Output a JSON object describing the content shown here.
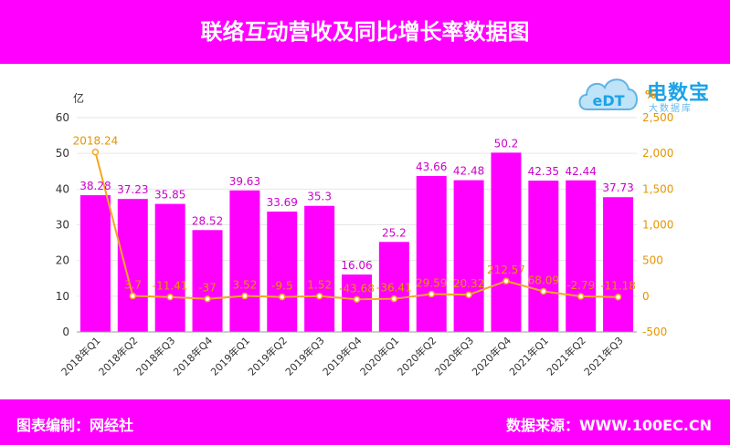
{
  "header": {
    "title": "联络互动营收及同比增长率数据图"
  },
  "footer": {
    "left": "图表编制：网经社",
    "right": "数据来源：WWW.100EC.CN"
  },
  "logo": {
    "name": "电数宝",
    "sub": "大数据库",
    "badge": "eDT"
  },
  "colors": {
    "bar": "#ff00ff",
    "line": "#f5a623",
    "bar_label": "#cc00cc",
    "line_label": "#e69500"
  },
  "chart_data": {
    "type": "bar",
    "categories": [
      "2018年Q1",
      "2018年Q2",
      "2018年Q3",
      "2018年Q4",
      "2019年Q1",
      "2019年Q2",
      "2019年Q3",
      "2019年Q4",
      "2020年Q1",
      "2020年Q2",
      "2020年Q3",
      "2020年Q4",
      "2021年Q1",
      "2021年Q2",
      "2021年Q3"
    ],
    "series": [
      {
        "type": "bar",
        "axis": "left",
        "values": [
          38.28,
          37.23,
          35.85,
          28.52,
          39.63,
          33.69,
          35.3,
          16.06,
          25.2,
          43.66,
          42.48,
          50.2,
          42.35,
          42.44,
          37.73
        ]
      },
      {
        "type": "line",
        "axis": "right",
        "values": [
          2018.24,
          3.7,
          -11.41,
          -37,
          3.52,
          -9.5,
          1.52,
          -43.68,
          -36.41,
          29.59,
          20.32,
          212.57,
          68.09,
          -2.79,
          -11.18
        ]
      }
    ],
    "ylabel": "亿",
    "y2label": "%",
    "ylim": [
      0,
      60
    ],
    "y_ticks": [
      0,
      10,
      20,
      30,
      40,
      50,
      60
    ],
    "y2lim": [
      -500,
      2500
    ],
    "y2_ticks": [
      -500,
      0,
      500,
      1000,
      1500,
      2000,
      2500
    ],
    "y2_tick_labels": [
      "-500",
      "0",
      "500",
      "1,000",
      "1,500",
      "2,000",
      "2,500"
    ],
    "grid": true
  }
}
